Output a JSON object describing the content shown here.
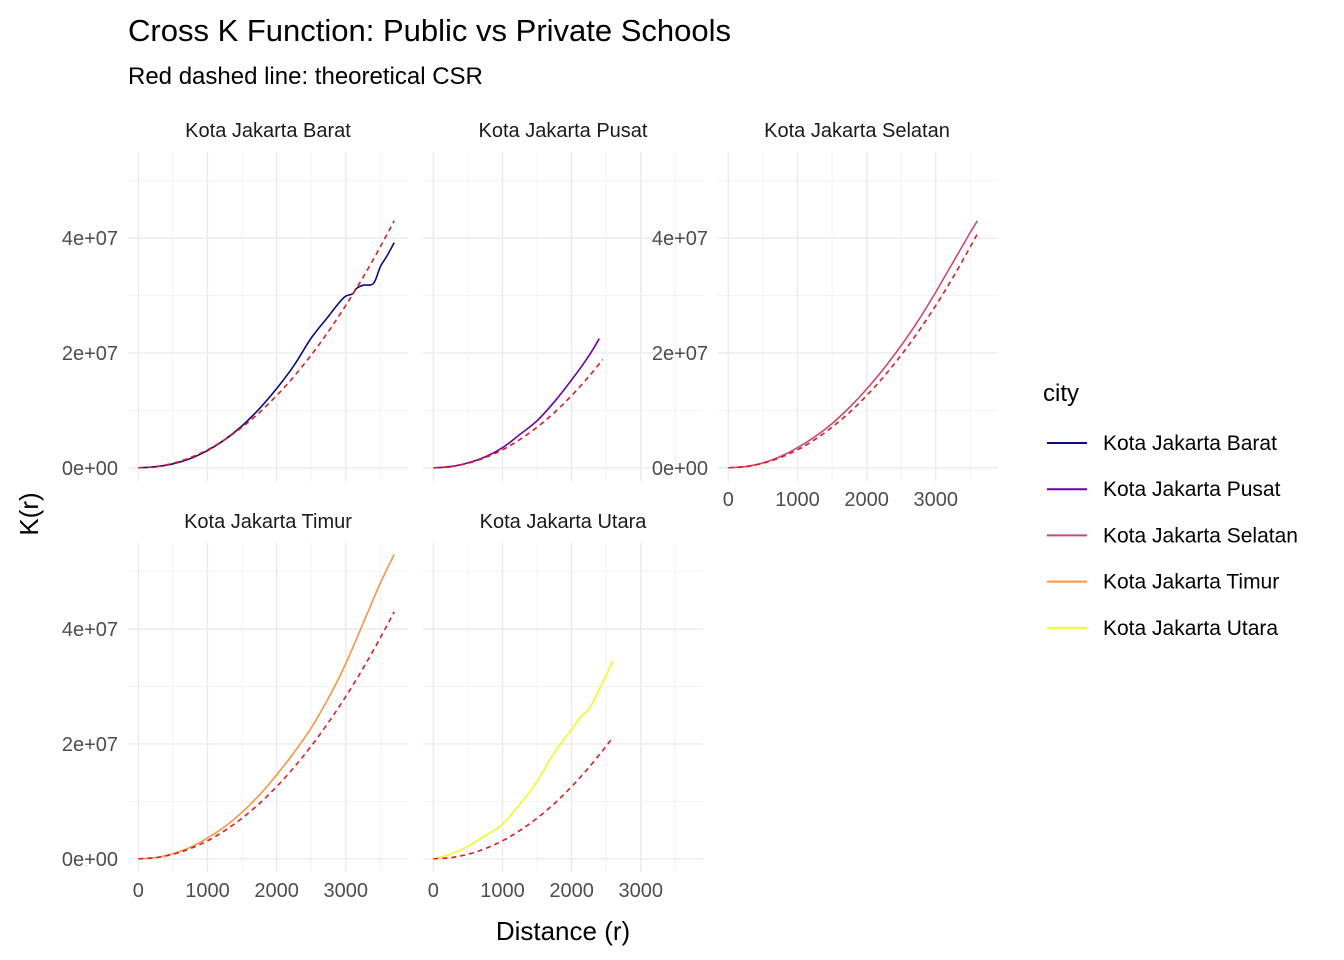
{
  "chart_data": {
    "type": "line",
    "title": "Cross K Function: Public vs Private Schools",
    "subtitle": "Red dashed line: theoretical CSR",
    "xlabel": "Distance (r)",
    "ylabel": "K(r)",
    "xlim": [
      -150,
      3900
    ],
    "ylim": [
      -2300000,
      55000000
    ],
    "x_ticks": [
      0,
      1000,
      2000,
      3000
    ],
    "x_tick_labels": [
      "0",
      "1000",
      "2000",
      "3000"
    ],
    "y_ticks": [
      0,
      20000000,
      40000000
    ],
    "y_tick_labels": [
      "0e+00",
      "2e+07",
      "4e+07"
    ],
    "grid": true,
    "legend": {
      "title": "city",
      "position": "right",
      "entries": [
        "Kota Jakarta Barat",
        "Kota Jakarta Pusat",
        "Kota Jakarta Selatan",
        "Kota Jakarta Timur",
        "Kota Jakarta Utara"
      ]
    },
    "theory_style": {
      "color": "#e31a1c",
      "dashed": true
    },
    "panels": [
      {
        "name": "Kota Jakarta Barat",
        "color": "#0d0887",
        "observed": {
          "x": [
            0,
            250,
            500,
            750,
            1000,
            1250,
            1500,
            1750,
            2000,
            2250,
            2500,
            2750,
            2900,
            3000,
            3100,
            3150,
            3250,
            3400,
            3500,
            3600,
            3700
          ],
          "y": [
            0,
            190000,
            700000,
            1600000,
            3000000,
            4900000,
            7300000,
            10300000,
            13800000,
            17800000,
            22600000,
            26400000,
            28700000,
            29900000,
            30300000,
            31200000,
            31800000,
            32100000,
            35000000,
            37000000,
            39200000
          ]
        },
        "theory": {
          "x": [
            0,
            250,
            500,
            750,
            1000,
            1250,
            1500,
            1750,
            2000,
            2250,
            2500,
            2750,
            3000,
            3250,
            3500,
            3700
          ],
          "y": [
            0,
            196000,
            785000,
            1770000,
            3140000,
            4910000,
            7070000,
            9620000,
            12570000,
            15900000,
            19630000,
            23760000,
            28270000,
            33180000,
            38480000,
            43010000
          ]
        }
      },
      {
        "name": "Kota Jakarta Pusat",
        "color": "#6a00a8",
        "observed": {
          "x": [
            0,
            250,
            500,
            750,
            1000,
            1250,
            1500,
            1750,
            2000,
            2250,
            2400
          ],
          "y": [
            0,
            200000,
            850000,
            1900000,
            3500000,
            5800000,
            8200000,
            11500000,
            15300000,
            19500000,
            22500000
          ]
        },
        "theory": {
          "x": [
            0,
            250,
            500,
            750,
            1000,
            1250,
            1500,
            1750,
            2000,
            2250,
            2450
          ],
          "y": [
            0,
            196000,
            785000,
            1770000,
            3140000,
            4910000,
            7070000,
            9620000,
            12570000,
            15900000,
            18860000
          ]
        }
      },
      {
        "name": "Kota Jakarta Selatan",
        "color": "#cc4778",
        "observed": {
          "x": [
            0,
            250,
            500,
            750,
            1000,
            1250,
            1500,
            1750,
            2000,
            2250,
            2500,
            2750,
            3000,
            3250,
            3500,
            3600
          ],
          "y": [
            0,
            210000,
            850000,
            1950000,
            3500000,
            5400000,
            7700000,
            10500000,
            13700000,
            17300000,
            21300000,
            25700000,
            30600000,
            35800000,
            41000000,
            43000000
          ]
        },
        "theory": {
          "x": [
            0,
            250,
            500,
            750,
            1000,
            1250,
            1500,
            1750,
            2000,
            2250,
            2500,
            2750,
            3000,
            3250,
            3500,
            3600
          ],
          "y": [
            0,
            196000,
            785000,
            1770000,
            3140000,
            4910000,
            7070000,
            9620000,
            12570000,
            15900000,
            19630000,
            23760000,
            28270000,
            33180000,
            38480000,
            40720000
          ]
        }
      },
      {
        "name": "Kota Jakarta Timur",
        "color": "#f89540",
        "observed": {
          "x": [
            0,
            250,
            500,
            750,
            1000,
            1250,
            1500,
            1750,
            2000,
            2250,
            2500,
            2750,
            3000,
            3250,
            3500,
            3700
          ],
          "y": [
            0,
            220000,
            900000,
            2000000,
            3600000,
            5600000,
            8100000,
            11100000,
            14600000,
            18500000,
            22800000,
            28000000,
            34000000,
            41000000,
            48000000,
            53000000
          ]
        },
        "theory": {
          "x": [
            0,
            250,
            500,
            750,
            1000,
            1250,
            1500,
            1750,
            2000,
            2250,
            2500,
            2750,
            3000,
            3250,
            3500,
            3700
          ],
          "y": [
            0,
            196000,
            785000,
            1770000,
            3140000,
            4910000,
            7070000,
            9620000,
            12570000,
            15900000,
            19630000,
            23760000,
            28270000,
            33180000,
            38480000,
            43010000
          ]
        }
      },
      {
        "name": "Kota Jakarta Utara",
        "color": "#f0f921",
        "observed": {
          "x": [
            0,
            250,
            500,
            750,
            1000,
            1250,
            1500,
            1750,
            2000,
            2150,
            2250,
            2400,
            2600
          ],
          "y": [
            0,
            800000,
            2200000,
            4000000,
            6000000,
            9500000,
            13500000,
            18500000,
            22500000,
            25000000,
            26000000,
            29500000,
            34500000
          ]
        },
        "theory": {
          "x": [
            0,
            250,
            500,
            750,
            1000,
            1250,
            1500,
            1750,
            2000,
            2250,
            2500,
            2600
          ],
          "y": [
            0,
            196000,
            785000,
            1770000,
            3140000,
            4910000,
            7070000,
            9620000,
            12570000,
            15900000,
            19630000,
            21240000
          ]
        }
      }
    ]
  }
}
